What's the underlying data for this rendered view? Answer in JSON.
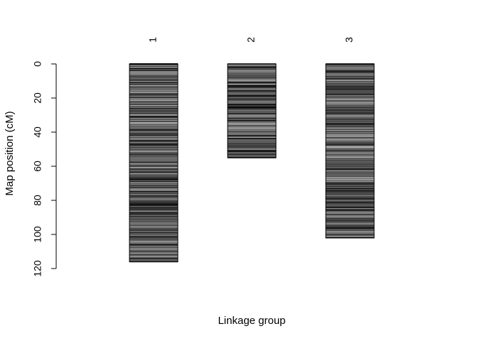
{
  "chart_data": {
    "type": "genetic-map",
    "title": "",
    "xlabel": "Linkage group",
    "ylabel": "Map position (cM)",
    "ylim": [
      0,
      120
    ],
    "y_reversed": true,
    "y_ticks": [
      0,
      20,
      40,
      60,
      80,
      100,
      120
    ],
    "groups": [
      {
        "label": "1",
        "length": 116
      },
      {
        "label": "2",
        "length": 55
      },
      {
        "label": "3",
        "length": 102
      }
    ],
    "marker_color": "#000000",
    "bar_fill": "#cccccc",
    "grid": false,
    "legend": "none"
  }
}
